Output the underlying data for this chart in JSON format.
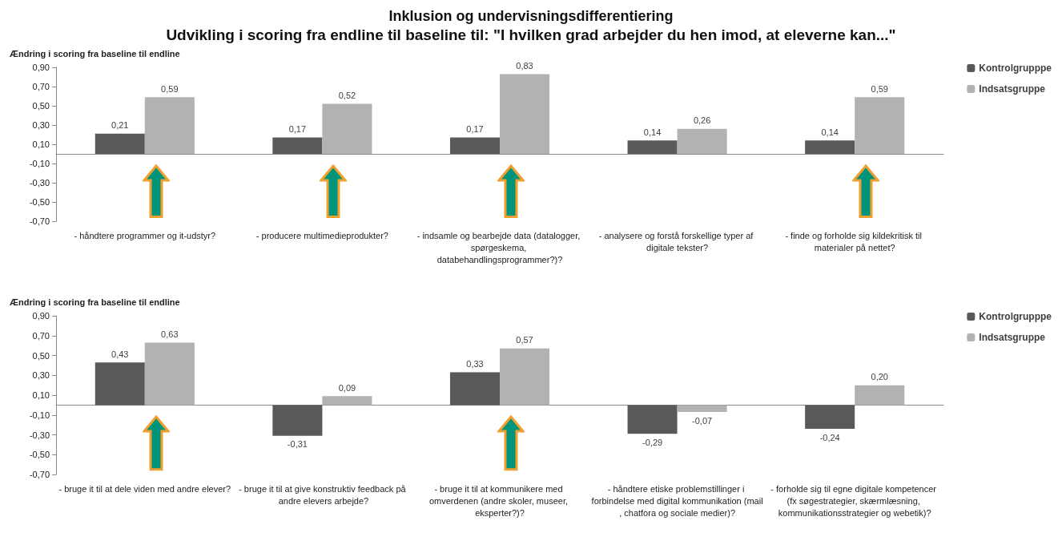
{
  "chart_data": [
    {
      "type": "bar",
      "title": "Inklusion og undervisningsdifferentiering",
      "subtitle": "Udvikling i scoring fra endline til baseline til: \"I hvilken grad arbejder du hen imod, at eleverne kan...\"",
      "ylabel": "Ændring i scoring fra baseline til endline",
      "categories": [
        "- håndtere programmer og it-udstyr?",
        "- producere multimedieprodukter?",
        "- indsamle og bearbejde data (datalogger, spørgeskema, databehandlingsprogrammer?)?",
        "- analysere og forstå forskellige typer af digitale tekster?",
        "- finde og forholde sig kildekritisk til materialer på nettet?"
      ],
      "series": [
        {
          "name": "Kontrolgrupppe",
          "color": "#595959",
          "values": [
            0.21,
            0.17,
            0.17,
            0.14,
            0.14
          ],
          "value_labels": [
            "0,21",
            "0,17",
            "0,17",
            "0,14",
            "0,14"
          ]
        },
        {
          "name": "Indsatsgruppe",
          "color": "#b2b2b2",
          "values": [
            0.59,
            0.52,
            0.83,
            0.26,
            0.59
          ],
          "value_labels": [
            "0,59",
            "0,52",
            "0,83",
            "0,26",
            "0,59"
          ]
        }
      ],
      "ylim": [
        -0.7,
        0.9
      ],
      "yticks": [
        {
          "value": -0.7,
          "label": "-0,70"
        },
        {
          "value": -0.5,
          "label": "-0,50"
        },
        {
          "value": -0.3,
          "label": "-0,30"
        },
        {
          "value": -0.1,
          "label": "-0,10"
        },
        {
          "value": 0.1,
          "label": "0,10"
        },
        {
          "value": 0.3,
          "label": "0,30"
        },
        {
          "value": 0.5,
          "label": "0,50"
        },
        {
          "value": 0.7,
          "label": "0,70"
        },
        {
          "value": 0.9,
          "label": "0,90"
        }
      ],
      "legend": "top right",
      "grid": false
    },
    {
      "type": "bar",
      "ylabel": "Ændring i scoring fra baseline til endline",
      "categories": [
        "- bruge it til at dele viden med andre elever?",
        "- bruge it til at give konstruktiv feedback på andre elevers arbejde?",
        "- bruge it til at kommunikere med omverdenen (andre skoler, museer, eksperter?)?",
        "- håndtere etiske problemstillinger i forbindelse med digital kommunikation (mail, chatfora og sociale medier)?",
        "- forholde sig til egne digitale kompetencer (fx søgestrategier, skærmlæsning, kommunikationsstrategier og webetik)?"
      ],
      "series": [
        {
          "name": "Kontrolgrupppe",
          "color": "#595959",
          "values": [
            0.43,
            -0.31,
            0.33,
            -0.29,
            -0.24
          ],
          "value_labels": [
            "0,43",
            "-0,31",
            "0,33",
            "-0,29",
            "-0,24"
          ]
        },
        {
          "name": "Indsatsgruppe",
          "color": "#b2b2b2",
          "values": [
            0.63,
            0.09,
            0.57,
            -0.07,
            0.2
          ],
          "value_labels": [
            "0,63",
            "0,09",
            "0,57",
            "-0,07",
            "0,20"
          ]
        }
      ],
      "ylim": [
        -0.7,
        0.9
      ],
      "yticks": [
        {
          "value": -0.7,
          "label": "-0,70"
        },
        {
          "value": -0.5,
          "label": "-0,50"
        },
        {
          "value": -0.3,
          "label": "-0,30"
        },
        {
          "value": -0.1,
          "label": "-0,10"
        },
        {
          "value": 0.1,
          "label": "0,10"
        },
        {
          "value": 0.3,
          "label": "0,30"
        },
        {
          "value": 0.5,
          "label": "0,50"
        },
        {
          "value": 0.7,
          "label": "0,70"
        },
        {
          "value": 0.9,
          "label": "0,90"
        }
      ],
      "legend": "top right",
      "grid": false
    }
  ]
}
